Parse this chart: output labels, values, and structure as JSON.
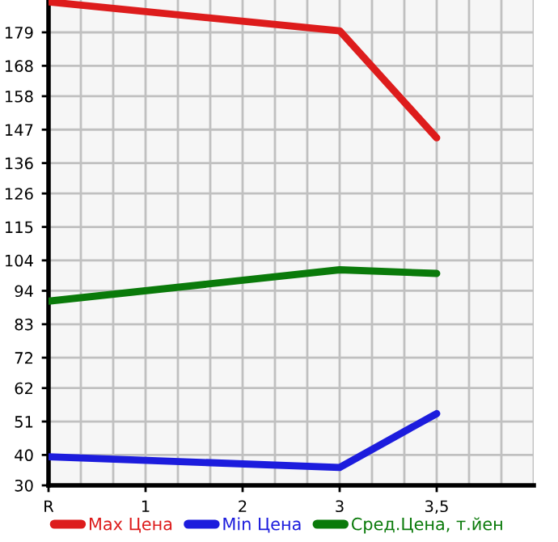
{
  "chart_data": {
    "type": "line",
    "categories": [
      "R",
      "1",
      "2",
      "3",
      "3,5"
    ],
    "series": [
      {
        "name": "Max Цена",
        "color": "#dd1c1c",
        "values": [
          189,
          null,
          null,
          179.5,
          144.3
        ]
      },
      {
        "name": "Min Цена",
        "color": "#1c1cdd",
        "values": [
          39.4,
          null,
          null,
          35.9,
          53.6
        ]
      },
      {
        "name": "Сред.Цена, т.йен",
        "color": "#0a7a0a",
        "values": [
          90.6,
          null,
          null,
          100.9,
          99.7
        ]
      }
    ],
    "ylim": [
      30,
      189.64
    ],
    "yticks": [
      30,
      40,
      51,
      62,
      72,
      83,
      94,
      104,
      115,
      126,
      136,
      147,
      158,
      168,
      179
    ],
    "grid": true,
    "legend": "bottom",
    "marker": "none",
    "line_style": "solid"
  }
}
